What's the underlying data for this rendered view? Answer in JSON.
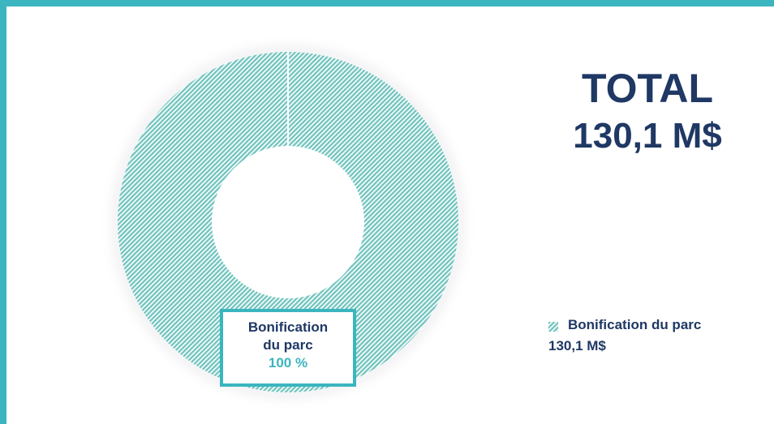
{
  "colors": {
    "accent": "#3bb5bf",
    "text": "#1f3864",
    "hatch": "#7fc9c4"
  },
  "total": {
    "title": "TOTAL",
    "value": "130,1 M$"
  },
  "chart_data": {
    "type": "pie",
    "donut": true,
    "title": "",
    "categories": [
      "Bonification du parc"
    ],
    "values": [
      100
    ],
    "value_labels": [
      "100 %"
    ],
    "legend_values": [
      "130,1 M$"
    ],
    "legend_position": "right"
  },
  "slice_label": {
    "line1": "Bonification",
    "line2": "du parc",
    "pct": "100 %"
  },
  "legend": {
    "name": "Bonification du parc",
    "value": "130,1 M$"
  }
}
